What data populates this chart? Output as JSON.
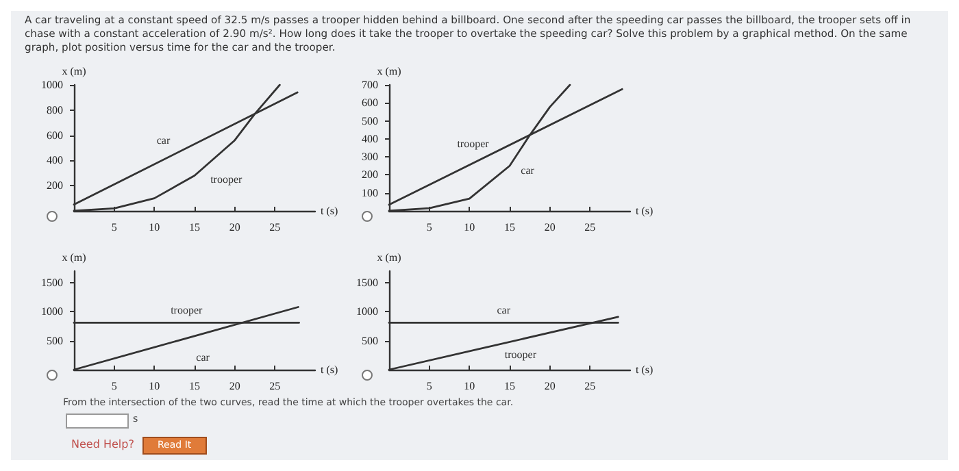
{
  "chart_data": [
    {
      "type": "line",
      "title": "A car traveling at a constant speed of 32.5 m/s passes a trooper hidden behind a billboard. One second after the speeding car passes the billboard, the trooper sets off in chase with a constant acceleration of 2.90 m/s². How long does it take the trooper to overtake the speeding car? Solve this problem by a graphical method. On the same graph, plot position versus time for the car and the trooper.",
      "xlabel": "t (s)",
      "ylabel": "x (m)",
      "xlim": [
        0,
        30
      ],
      "xticks": [
        5,
        10,
        15,
        20,
        25
      ],
      "ylim": [
        0,
        1000
      ],
      "yticks": [
        200,
        400,
        600,
        800,
        1000
      ],
      "grid": false,
      "legend": false,
      "marker": "none",
      "series": [
        {
          "name": "car",
          "color": "#333333",
          "x": [
            0,
            27.8
          ],
          "values": [
            50,
            940
          ]
        },
        {
          "name": "trooper",
          "color": "#333333",
          "x": [
            0,
            5,
            10,
            15,
            20,
            22.5,
            25.6
          ],
          "values": [
            0,
            20,
            100,
            280,
            560,
            770,
            1000
          ]
        }
      ]
    },
    {
      "type": "line",
      "xlabel": "t (s)",
      "ylabel": "x (m)",
      "xlim": [
        0,
        30
      ],
      "xticks": [
        5,
        10,
        15,
        20,
        25
      ],
      "ylim": [
        0,
        700
      ],
      "yticks": [
        100,
        200,
        300,
        400,
        500,
        600,
        700
      ],
      "grid": false,
      "legend": false,
      "marker": "none",
      "series": [
        {
          "name": "trooper",
          "color": "#333333",
          "x": [
            0,
            29
          ],
          "values": [
            34,
            676
          ]
        },
        {
          "name": "car",
          "color": "#333333",
          "x": [
            0,
            5,
            10,
            15,
            17.5,
            20,
            22.5
          ],
          "values": [
            0,
            15,
            68,
            250,
            420,
            577,
            700
          ]
        }
      ]
    },
    {
      "type": "line",
      "xlabel": "t (s)",
      "ylabel": "x (m)",
      "xlim": [
        0,
        30
      ],
      "xticks": [
        5,
        10,
        15,
        20,
        25
      ],
      "ylim": [
        0,
        1700
      ],
      "yticks": [
        500,
        1000,
        1500
      ],
      "grid": false,
      "legend": false,
      "marker": "none",
      "series": [
        {
          "name": "trooper",
          "color": "#333333",
          "x": [
            0,
            28
          ],
          "values": [
            810,
            810
          ]
        },
        {
          "name": "car",
          "color": "#333333",
          "x": [
            0,
            27.9
          ],
          "values": [
            0,
            1080
          ]
        }
      ]
    },
    {
      "type": "line",
      "xlabel": "t (s)",
      "ylabel": "x (m)",
      "xlim": [
        0,
        30
      ],
      "xticks": [
        5,
        10,
        15,
        20,
        25
      ],
      "ylim": [
        0,
        1700
      ],
      "yticks": [
        500,
        1000,
        1500
      ],
      "grid": false,
      "legend": false,
      "marker": "none",
      "annotations": [
        "From the intersection of the two curves, read the time at which the trooper overtakes the car.",
        "s",
        "Need Help?",
        "Read It"
      ],
      "series": [
        {
          "name": "car",
          "color": "#333333",
          "x": [
            0,
            28.5
          ],
          "values": [
            810,
            810
          ]
        },
        {
          "name": "trooper",
          "color": "#333333",
          "x": [
            0,
            28.5
          ],
          "values": [
            0,
            910
          ]
        }
      ]
    }
  ]
}
